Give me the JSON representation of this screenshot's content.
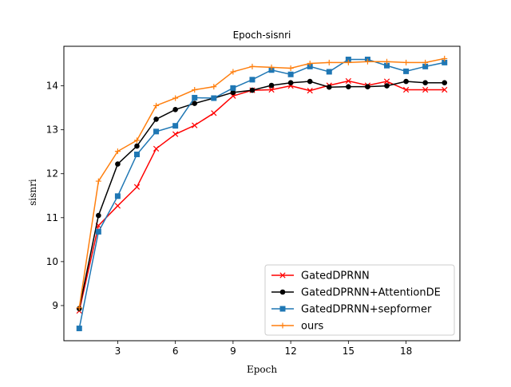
{
  "chart_data": {
    "type": "line",
    "title": "Epoch-sisnri",
    "xlabel": "Epoch",
    "ylabel": "sisnri",
    "xlim": [
      0.2,
      20.8
    ],
    "ylim": [
      8.2,
      14.9
    ],
    "xticks": [
      3,
      6,
      9,
      12,
      15,
      18
    ],
    "yticks": [
      9,
      10,
      11,
      12,
      13,
      14
    ],
    "grid": false,
    "legend_position": "lower-right",
    "x": [
      1,
      2,
      3,
      4,
      5,
      6,
      7,
      8,
      9,
      10,
      11,
      12,
      13,
      14,
      15,
      16,
      17,
      18,
      19,
      20
    ],
    "series": [
      {
        "name": "GatedDPRNN",
        "color": "#ff0000",
        "marker": "x",
        "values": [
          8.88,
          10.82,
          11.27,
          11.7,
          12.57,
          12.9,
          13.1,
          13.38,
          13.77,
          13.9,
          13.91,
          14.0,
          13.89,
          14.01,
          14.11,
          14.01,
          14.1,
          13.91,
          13.91,
          13.91
        ]
      },
      {
        "name": "GatedDPRNN+AttentionDE",
        "color": "#000000",
        "marker": "circle",
        "values": [
          8.93,
          11.05,
          12.22,
          12.63,
          13.24,
          13.46,
          13.6,
          13.72,
          13.85,
          13.9,
          14.01,
          14.07,
          14.1,
          13.97,
          13.98,
          13.98,
          14.0,
          14.1,
          14.07,
          14.07
        ]
      },
      {
        "name": "GatedDPRNN+sepformer",
        "color": "#1f77b4",
        "marker": "square",
        "values": [
          8.48,
          10.68,
          11.49,
          12.44,
          12.96,
          13.09,
          13.73,
          13.72,
          13.95,
          14.14,
          14.36,
          14.26,
          14.44,
          14.32,
          14.6,
          14.6,
          14.46,
          14.33,
          14.44,
          14.53
        ]
      },
      {
        "name": "ours",
        "color": "#ff7f0e",
        "marker": "plus",
        "values": [
          8.95,
          11.83,
          12.51,
          12.76,
          13.55,
          13.72,
          13.91,
          13.98,
          14.32,
          14.44,
          14.42,
          14.4,
          14.51,
          14.53,
          14.53,
          14.55,
          14.55,
          14.53,
          14.53,
          14.62
        ]
      }
    ]
  }
}
